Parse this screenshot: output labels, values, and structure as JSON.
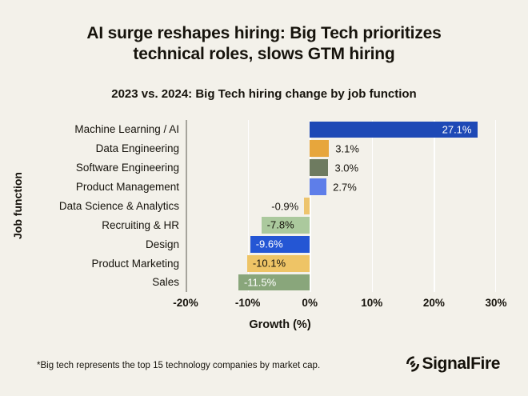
{
  "header": {
    "title_line1": "AI surge reshapes hiring: Big Tech prioritizes",
    "title_line2": "technical roles, slows GTM hiring",
    "subtitle": "2023 vs. 2024: Big Tech hiring change by job function"
  },
  "chart_data": {
    "type": "bar",
    "orientation": "horizontal",
    "title": "2023 vs. 2024: Big Tech hiring change by job function",
    "xlabel": "Growth (%)",
    "ylabel": "Job function",
    "xlim": [
      -20,
      30
    ],
    "grid": "vertical",
    "categories": [
      "Machine Learning / AI",
      "Data Engineering",
      "Software Engineering",
      "Product Management",
      "Data Science & Analytics",
      "Recruiting & HR",
      "Design",
      "Product Marketing",
      "Sales"
    ],
    "values": [
      27.1,
      3.1,
      3.0,
      2.7,
      -0.9,
      -7.8,
      -9.6,
      -10.1,
      -11.5
    ],
    "value_labels": [
      "27.1%",
      "3.1%",
      "3.0%",
      "2.7%",
      "-0.9%",
      "-7.8%",
      "-9.6%",
      "-10.1%",
      "-11.5%"
    ],
    "bar_colors": [
      "#1e49b6",
      "#e7a63c",
      "#6e7b60",
      "#5e7ee9",
      "#edc46d",
      "#abc99d",
      "#2456d4",
      "#eec466",
      "#89a67b"
    ],
    "label_placements": [
      "inside-right",
      "outside-right",
      "outside-right",
      "outside-right",
      "outside-left",
      "inside-left",
      "inside-left",
      "inside-left",
      "inside-left"
    ],
    "label_colors": [
      "#ffffff",
      "#16130c",
      "#16130c",
      "#16130c",
      "#16130c",
      "#16130c",
      "#ffffff",
      "#16130c",
      "#ffffff"
    ],
    "x_ticks": [
      "-20%",
      "-10%",
      "0%",
      "10%",
      "20%",
      "30%"
    ],
    "x_tick_values": [
      -20,
      -10,
      0,
      10,
      20,
      30
    ],
    "gridline_values": [
      -10,
      0,
      10,
      20,
      30
    ],
    "axis_spine_value": -20
  },
  "footer": {
    "note": "*Big tech represents the top 15 technology companies by market cap.",
    "brand": "SignalFire"
  },
  "colors": {
    "background": "#f3f1ea",
    "text": "#16130c",
    "spine": "#a6a49c",
    "gridline": "#ffffff"
  }
}
